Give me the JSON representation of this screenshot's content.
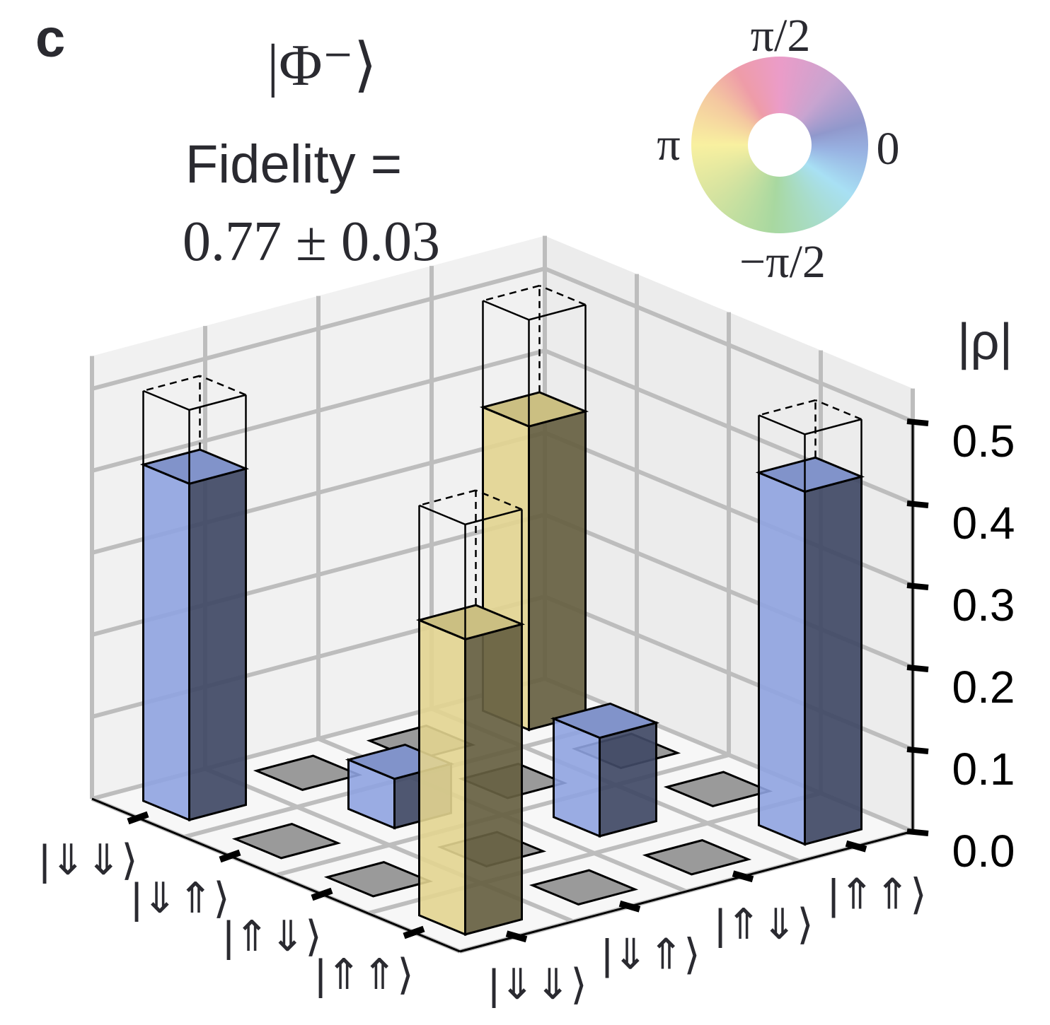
{
  "panel_label": "c",
  "state_label": "|Φ⁻⟩",
  "fidelity_label": "Fidelity =",
  "fidelity_value": "0.77 ± 0.03",
  "phase_wheel": {
    "top": "π/2",
    "right": "0",
    "left": "π",
    "bottom": "−π/2"
  },
  "chart_data": {
    "type": "bar3d",
    "zlabel": "|ρ|",
    "zlim": [
      0,
      0.5
    ],
    "zticks": [
      "0.0",
      "0.1",
      "0.2",
      "0.3",
      "0.4",
      "0.5"
    ],
    "row_labels": [
      "|⇓⇓⟩",
      "|⇓⇑⟩",
      "|⇑⇓⟩",
      "|⇑⇑⟩"
    ],
    "col_labels": [
      "|⇓⇓⟩",
      "|⇓⇑⟩",
      "|⇑⇓⟩",
      "|⇑⇑⟩"
    ],
    "abs_values": [
      [
        0.41,
        0.0,
        0.0,
        0.37
      ],
      [
        0.0,
        0.06,
        0.0,
        0.0
      ],
      [
        0.0,
        0.0,
        0.12,
        0.0
      ],
      [
        0.36,
        0.0,
        0.0,
        0.43
      ]
    ],
    "phase": [
      [
        "0",
        null,
        null,
        "π"
      ],
      [
        null,
        "0",
        null,
        null
      ],
      [
        null,
        null,
        "0",
        null
      ],
      [
        "π",
        null,
        null,
        "0"
      ]
    ],
    "ideal_abs_values": [
      [
        0.5,
        0,
        0,
        0.5
      ],
      [
        0,
        0,
        0,
        0
      ],
      [
        0,
        0,
        0,
        0
      ],
      [
        0.5,
        0,
        0,
        0.5
      ]
    ],
    "grid": true
  },
  "colors": {
    "phase_0": "#8fa3e0",
    "phase_pi": "#e2d490",
    "zero": "#9a9a9a",
    "wall": "#f1f1f1",
    "grid": "#bdbdbd",
    "text": "#2a2a30"
  }
}
